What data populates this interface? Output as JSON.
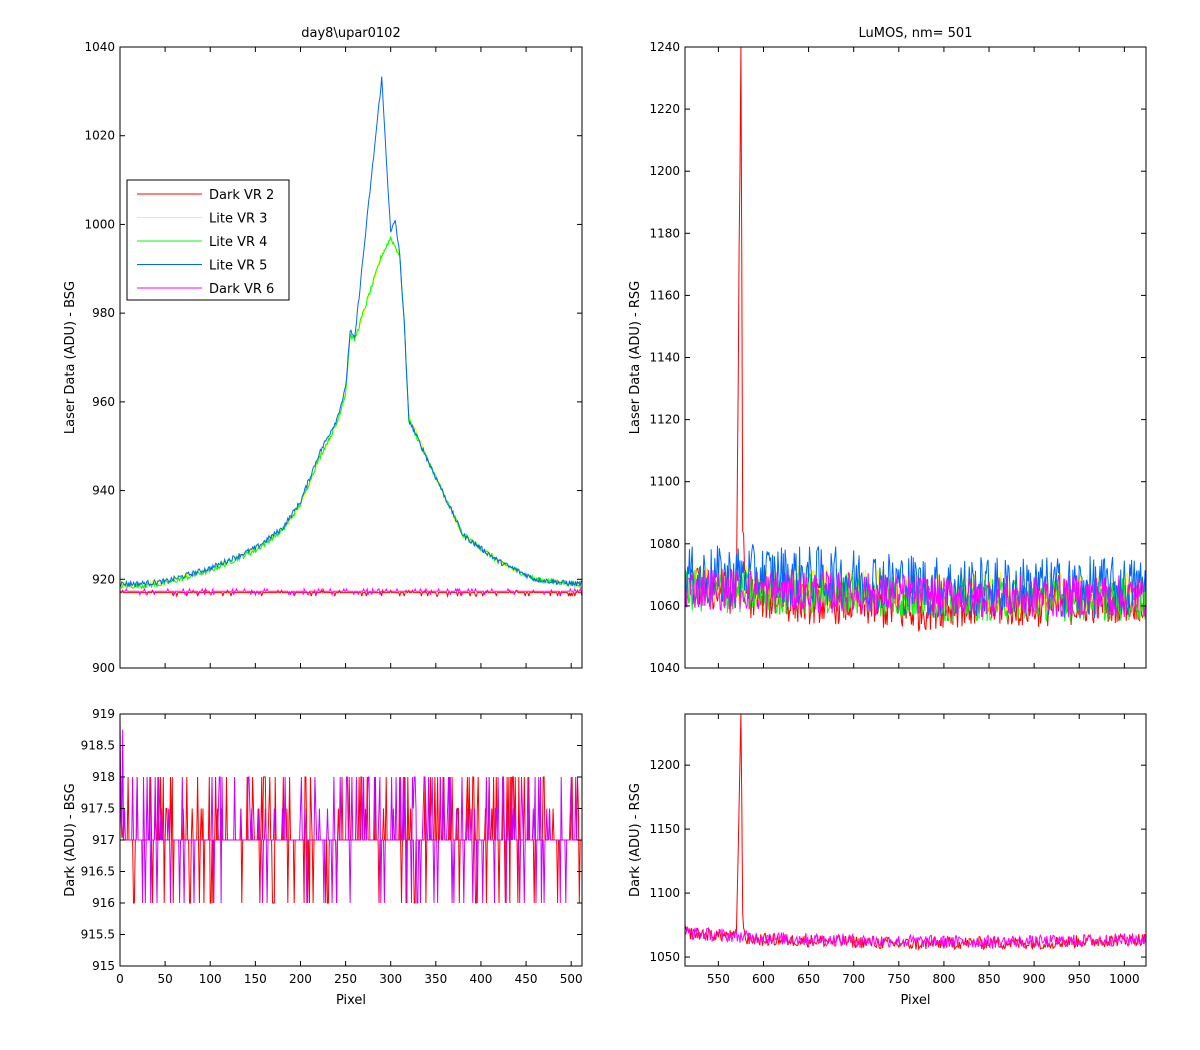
{
  "figure": {
    "background": "#ffffff"
  },
  "chart_data": [
    {
      "id": "laser_bsg",
      "type": "line",
      "title": "day8\\upar0102",
      "xlabel": "",
      "ylabel": "Laser Data (ADU) - BSG",
      "xlim": [
        0,
        512
      ],
      "ylim": [
        900,
        1040
      ],
      "xticks": [
        0,
        50,
        100,
        150,
        200,
        250,
        300,
        350,
        400,
        450,
        500
      ],
      "xticklabels_visible": false,
      "yticks": [
        900,
        920,
        940,
        960,
        980,
        1000,
        1020,
        1040
      ],
      "legend": {
        "location": "upper-left",
        "entries": [
          {
            "name": "Dark VR 2",
            "color": "#ff0000"
          },
          {
            "name": "Lite VR 3",
            "color": "#ffff00"
          },
          {
            "name": "Lite VR 4",
            "color": "#00ff00"
          },
          {
            "name": "Lite VR 5",
            "color": "#0066ff"
          },
          {
            "name": "Dark VR 6",
            "color": "#ff00ff"
          }
        ]
      },
      "series": [
        {
          "name": "Dark VR 2",
          "color": "#ff0000",
          "x": [
            0,
            512
          ],
          "y": [
            917,
            917
          ]
        },
        {
          "name": "Lite VR 3",
          "color": "#ffff00",
          "x": [
            0,
            20,
            50,
            100,
            150,
            180,
            200,
            220,
            240,
            250,
            255,
            260,
            290,
            300,
            305,
            310,
            315,
            320,
            350,
            380,
            420,
            460,
            500,
            512
          ],
          "y": [
            919,
            918.5,
            919.5,
            922,
            927,
            931,
            937,
            947,
            955,
            962,
            975,
            974,
            993,
            997,
            995,
            993,
            978,
            957,
            943,
            930,
            924,
            920,
            919,
            919
          ]
        },
        {
          "name": "Lite VR 4",
          "color": "#00ff00",
          "x": [
            0,
            20,
            50,
            100,
            150,
            180,
            200,
            220,
            240,
            250,
            255,
            260,
            290,
            300,
            305,
            310,
            315,
            320,
            350,
            380,
            420,
            460,
            500,
            512
          ],
          "y": [
            918.5,
            918.5,
            919,
            922,
            926.5,
            931,
            937,
            947,
            955,
            962,
            975,
            974,
            993,
            997,
            995,
            993,
            978,
            956,
            943,
            930,
            924,
            920,
            919,
            918.5
          ]
        },
        {
          "name": "Lite VR 5",
          "color": "#0066ff",
          "x": [
            0,
            20,
            50,
            100,
            150,
            180,
            200,
            220,
            240,
            250,
            255,
            260,
            290,
            300,
            305,
            310,
            315,
            320,
            350,
            380,
            420,
            460,
            500,
            512
          ],
          "y": [
            919,
            919,
            919.5,
            922.5,
            927,
            931.5,
            937.5,
            948,
            956,
            963,
            976,
            974,
            1033,
            998,
            1001,
            993,
            978,
            956,
            943,
            930,
            924,
            920,
            919,
            919
          ]
        },
        {
          "name": "Dark VR 6",
          "color": "#ff00ff",
          "x": [
            0,
            512
          ],
          "y": [
            917.3,
            917.3
          ]
        }
      ]
    },
    {
      "id": "laser_rsg",
      "type": "line",
      "title": "LuMOS, nm= 501",
      "xlabel": "",
      "ylabel": "Laser Data (ADU) - RSG",
      "xlim": [
        513,
        1024
      ],
      "ylim": [
        1040,
        1240
      ],
      "xticks": [
        550,
        600,
        650,
        700,
        750,
        800,
        850,
        900,
        950,
        1000
      ],
      "xticklabels_visible": false,
      "yticks": [
        1040,
        1060,
        1080,
        1100,
        1120,
        1140,
        1160,
        1180,
        1200,
        1220,
        1240
      ],
      "series": [
        {
          "name": "Dark VR 2",
          "color": "#ff0000",
          "x": [
            513,
            570,
            575,
            576,
            577,
            580,
            650,
            700,
            760,
            800,
            900,
            1024
          ],
          "y": [
            1066,
            1064,
            1240,
            1170,
            1084,
            1063,
            1061,
            1061,
            1058,
            1060,
            1060,
            1062
          ]
        },
        {
          "name": "Lite VR 3",
          "color": "#ffff00",
          "x": [
            513,
            600,
            700,
            800,
            900,
            1024
          ],
          "y": [
            1066,
            1067,
            1066,
            1064,
            1064,
            1064
          ]
        },
        {
          "name": "Lite VR 4",
          "color": "#00ff00",
          "x": [
            513,
            600,
            700,
            800,
            900,
            1024
          ],
          "y": [
            1065,
            1064,
            1064,
            1062,
            1062,
            1062
          ]
        },
        {
          "name": "Lite VR 5",
          "color": "#0066ff",
          "x": [
            513,
            600,
            700,
            800,
            900,
            1024
          ],
          "y": [
            1069,
            1070,
            1069,
            1066,
            1066,
            1066
          ]
        },
        {
          "name": "Dark VR 6",
          "color": "#ff00ff",
          "x": [
            513,
            600,
            700,
            800,
            900,
            1024
          ],
          "y": [
            1066,
            1065,
            1064,
            1063,
            1063,
            1063
          ]
        }
      ]
    },
    {
      "id": "dark_bsg",
      "type": "line",
      "title": "",
      "xlabel": "Pixel",
      "ylabel": "Dark (ADU) - BSG",
      "xlim": [
        0,
        512
      ],
      "ylim": [
        915,
        919
      ],
      "xticks": [
        0,
        50,
        100,
        150,
        200,
        250,
        300,
        350,
        400,
        450,
        500
      ],
      "xticklabels_visible": true,
      "yticks": [
        915,
        915.5,
        916,
        916.5,
        917,
        917.5,
        918,
        918.5,
        919
      ],
      "series": [
        {
          "name": "Dark VR 2",
          "color": "#ff0000",
          "x": [
            0,
            512
          ],
          "y": [
            917,
            917
          ]
        },
        {
          "name": "Dark VR 6",
          "color": "#cc00ff",
          "x": [
            0,
            512
          ],
          "y": [
            917,
            917
          ]
        }
      ]
    },
    {
      "id": "dark_rsg",
      "type": "line",
      "title": "",
      "xlabel": "Pixel",
      "ylabel": "Dark (ADU) - RSG",
      "xlim": [
        513,
        1024
      ],
      "ylim": [
        1043,
        1240
      ],
      "xticks": [
        550,
        600,
        650,
        700,
        750,
        800,
        850,
        900,
        950,
        1000
      ],
      "xticklabels_visible": true,
      "yticks": [
        1050,
        1100,
        1150,
        1200
      ],
      "series": [
        {
          "name": "Dark VR 2",
          "color": "#ff0000",
          "x": [
            513,
            570,
            575,
            576,
            577,
            580,
            700,
            760,
            800,
            900,
            1024
          ],
          "y": [
            1069,
            1066,
            1240,
            1170,
            1084,
            1064,
            1062,
            1060,
            1061,
            1061,
            1064
          ]
        },
        {
          "name": "Dark VR 6",
          "color": "#ff00ff",
          "x": [
            513,
            600,
            700,
            800,
            900,
            1024
          ],
          "y": [
            1069,
            1065,
            1063,
            1062,
            1062,
            1064
          ]
        }
      ]
    }
  ]
}
